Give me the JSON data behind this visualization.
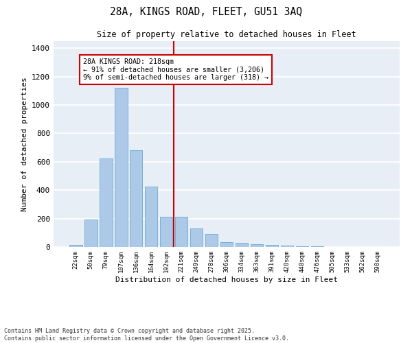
{
  "title_line1": "28A, KINGS ROAD, FLEET, GU51 3AQ",
  "title_line2": "Size of property relative to detached houses in Fleet",
  "xlabel": "Distribution of detached houses by size in Fleet",
  "ylabel": "Number of detached properties",
  "categories": [
    "22sqm",
    "50sqm",
    "79sqm",
    "107sqm",
    "136sqm",
    "164sqm",
    "192sqm",
    "221sqm",
    "249sqm",
    "278sqm",
    "306sqm",
    "334sqm",
    "363sqm",
    "391sqm",
    "420sqm",
    "448sqm",
    "476sqm",
    "505sqm",
    "533sqm",
    "562sqm",
    "590sqm"
  ],
  "values": [
    15,
    195,
    625,
    1120,
    680,
    425,
    215,
    215,
    130,
    90,
    35,
    28,
    20,
    15,
    8,
    5,
    3,
    2,
    1,
    0,
    0
  ],
  "bar_color": "#adc9e8",
  "bar_edge_color": "#6aaad4",
  "vline_index": 7,
  "vline_color": "#cc0000",
  "annotation_box_color": "#cc0000",
  "annotation_line1": "28A KINGS ROAD: 218sqm",
  "annotation_line2": "← 91% of detached houses are smaller (3,206)",
  "annotation_line3": "9% of semi-detached houses are larger (318) →",
  "ylim": [
    0,
    1450
  ],
  "yticks": [
    0,
    200,
    400,
    600,
    800,
    1000,
    1200,
    1400
  ],
  "background_color": "#e8eef5",
  "grid_color": "#ffffff",
  "footer_line1": "Contains HM Land Registry data © Crown copyright and database right 2025.",
  "footer_line2": "Contains public sector information licensed under the Open Government Licence v3.0.",
  "fig_width": 6.0,
  "fig_height": 5.0,
  "dpi": 100
}
